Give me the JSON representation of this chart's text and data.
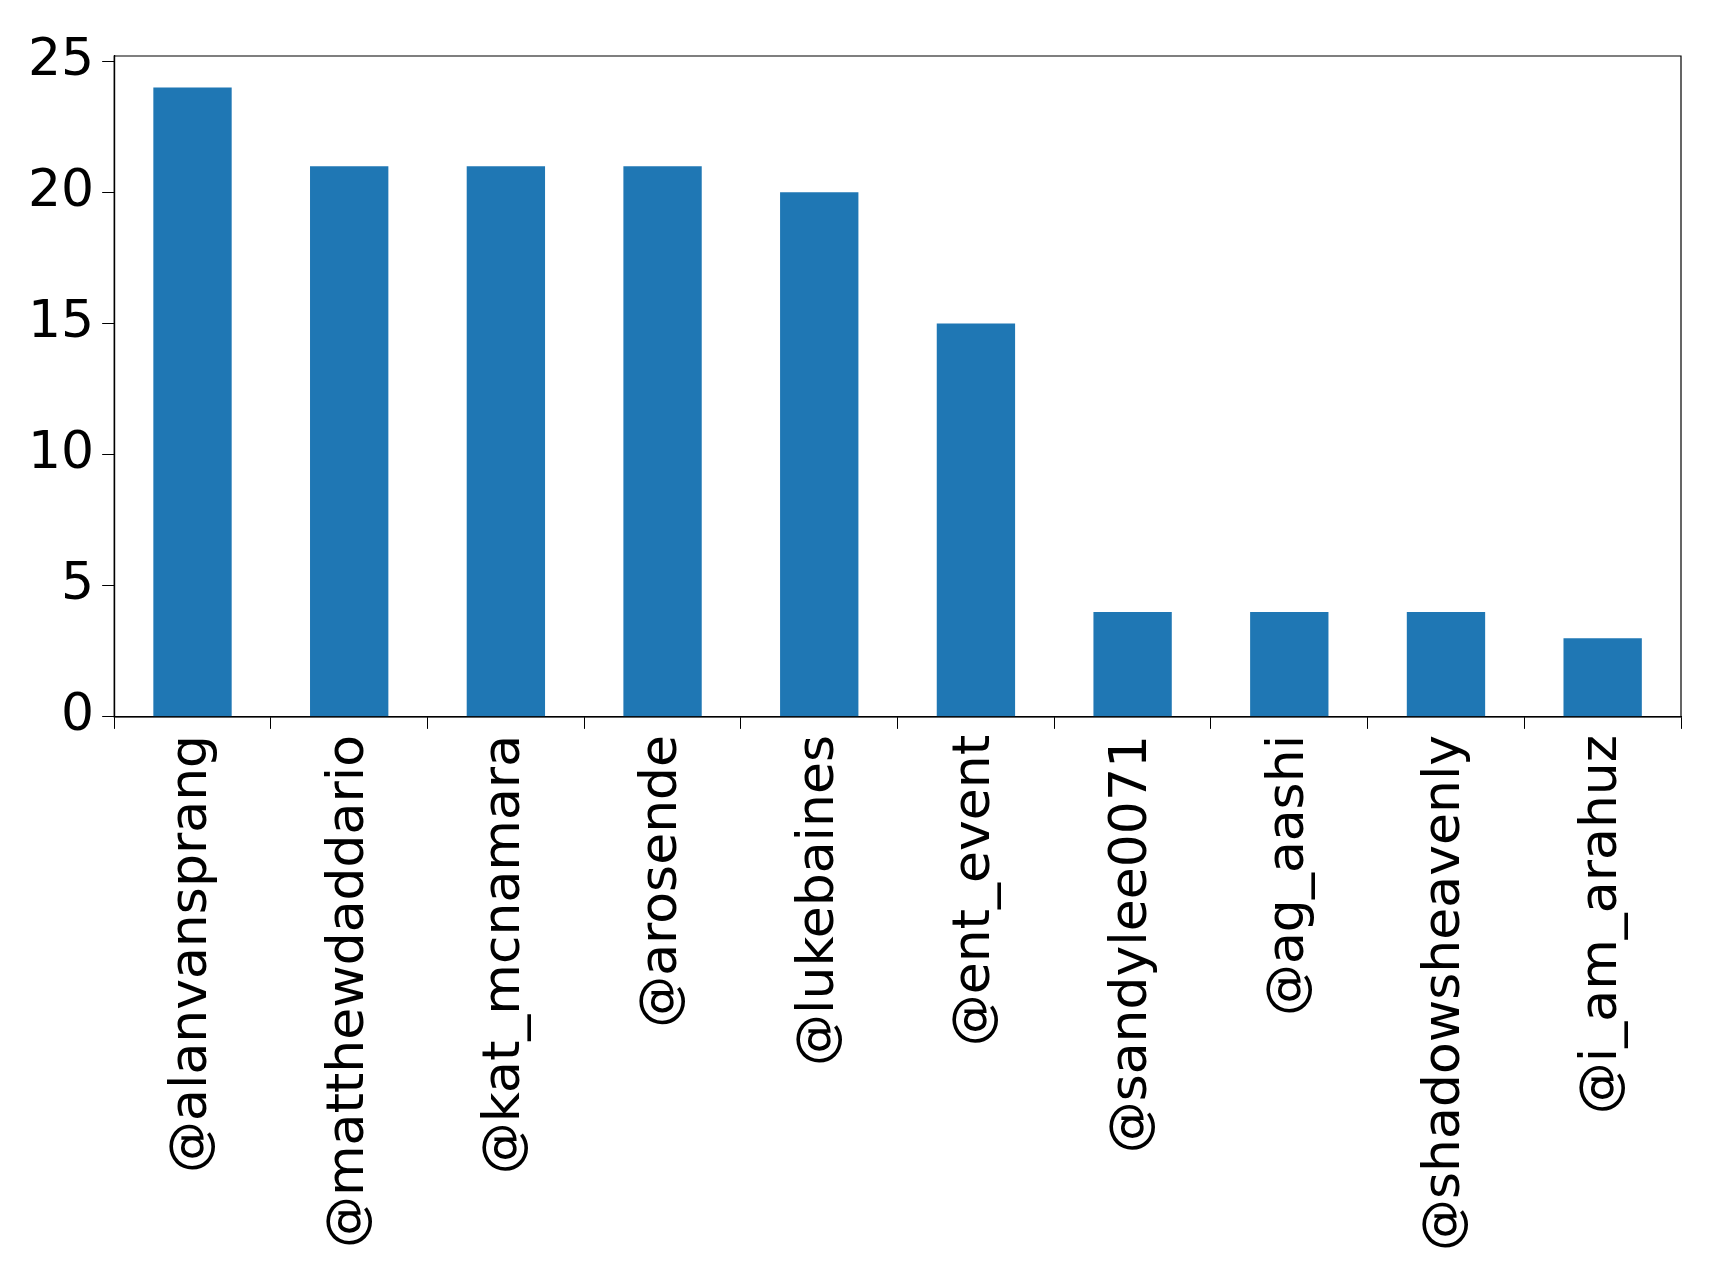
{
  "chart_data": {
    "type": "bar",
    "categories": [
      "@alanvansprang",
      "@matthewdaddario",
      "@kat_mcnamara",
      "@arosende",
      "@lukebaines",
      "@ent_event",
      "@sandylee0071",
      "@ag_aashi",
      "@shadowsheavenly",
      "@i_am_arahuz"
    ],
    "values": [
      24,
      21,
      21,
      21,
      20,
      15,
      4,
      4,
      4,
      3
    ],
    "color": "#1f77b4",
    "ylim": [
      0,
      25.2
    ],
    "yticks": [
      0,
      5,
      10,
      15,
      20,
      25
    ],
    "grid": false
  }
}
